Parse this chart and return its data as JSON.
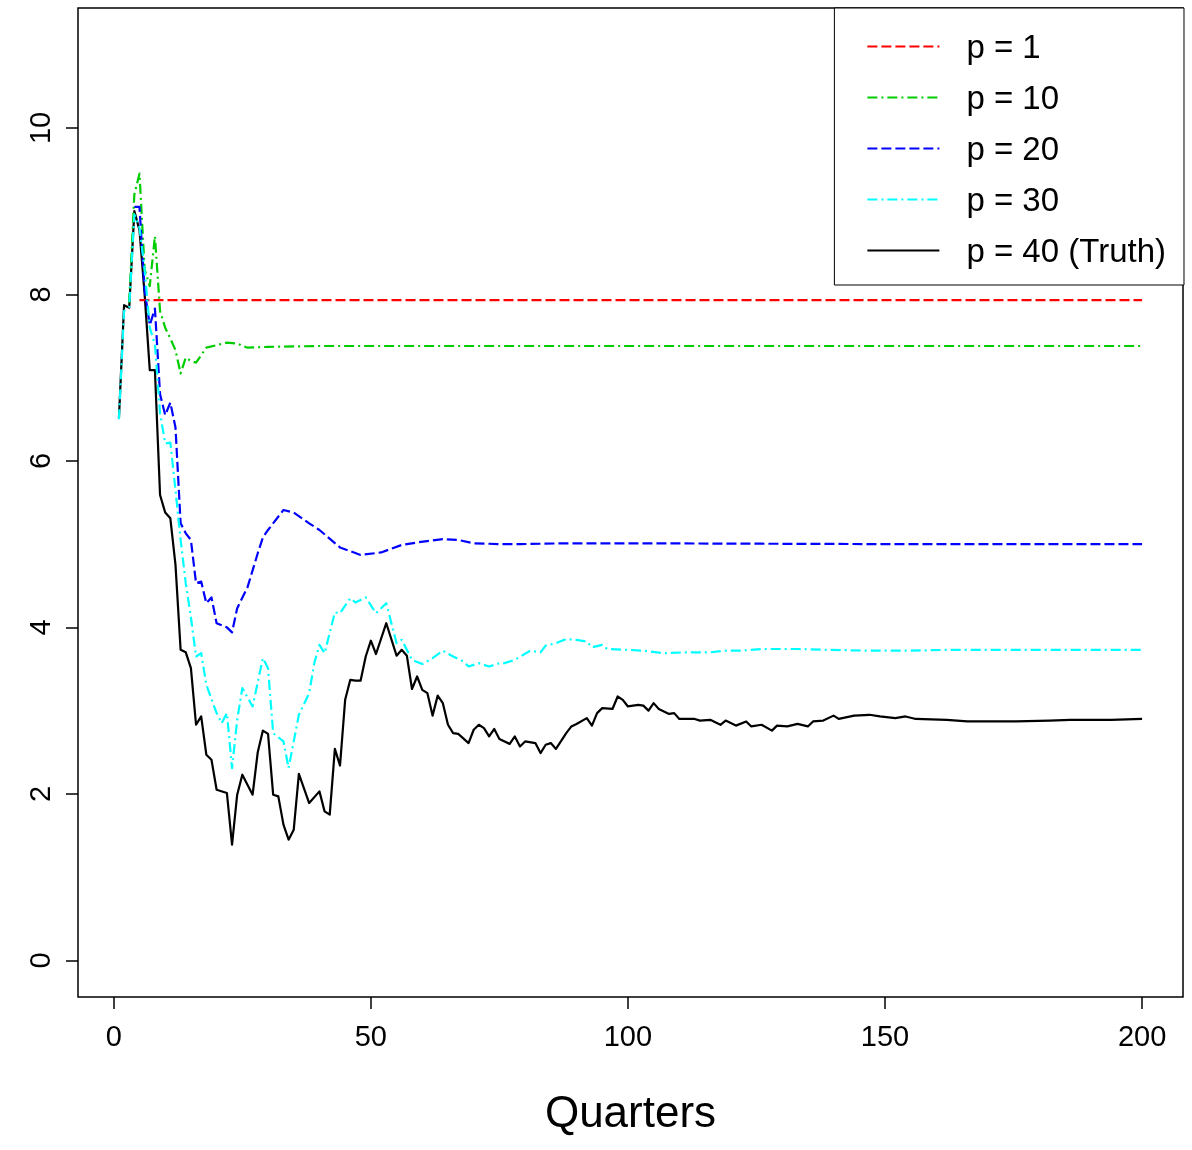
{
  "chart_data": {
    "type": "line",
    "xlabel": "Quarters",
    "xlim": [
      -6.96,
      207.96
    ],
    "xticks": [
      0,
      50,
      100,
      150,
      200
    ],
    "ylim": [
      -0.44,
      11.44
    ],
    "yticks": [
      0,
      2,
      4,
      6,
      8,
      10
    ],
    "grid": false,
    "legend": "top right",
    "marker": "none",
    "series": [
      {
        "name": "p = 1",
        "color": "#ff0000",
        "line_style": "dashed",
        "x": [
          5,
          200
        ],
        "values": [
          7.93,
          7.93
        ]
      },
      {
        "name": "p = 10",
        "color": "#00cd00",
        "line_style": "dotted",
        "x": [
          3,
          4,
          5,
          6,
          7,
          8,
          9,
          10,
          11,
          12,
          13,
          14,
          15,
          16,
          18,
          20,
          22,
          24,
          26,
          30,
          40,
          60,
          100,
          150,
          200
        ],
        "values": [
          7.9,
          9.2,
          9.45,
          8.3,
          8.1,
          8.7,
          7.8,
          7.6,
          7.47,
          7.33,
          7.05,
          7.24,
          7.2,
          7.18,
          7.36,
          7.39,
          7.42,
          7.41,
          7.36,
          7.37,
          7.38,
          7.38,
          7.38,
          7.38,
          7.38
        ]
      },
      {
        "name": "p = 20",
        "color": "#0000ff",
        "line_style": "dashed",
        "x": [
          4,
          5,
          6,
          7,
          8,
          9,
          10,
          11,
          12,
          13,
          14,
          15,
          16,
          17,
          18,
          19,
          20,
          22,
          23,
          24,
          26,
          28,
          29,
          30,
          33,
          35,
          38,
          40,
          44,
          48,
          52,
          56,
          59,
          64,
          67,
          70,
          75,
          79,
          88,
          93,
          101,
          150,
          200
        ],
        "values": [
          9.05,
          9.05,
          8.05,
          7.63,
          7.83,
          6.8,
          6.55,
          6.7,
          6.4,
          5.25,
          5.13,
          5.05,
          4.53,
          4.55,
          4.29,
          4.36,
          4.05,
          4.0,
          3.94,
          4.23,
          4.48,
          4.89,
          5.08,
          5.17,
          5.41,
          5.38,
          5.25,
          5.17,
          4.96,
          4.87,
          4.9,
          4.99,
          5.02,
          5.06,
          5.05,
          5.01,
          5.0,
          5.0,
          5.01,
          5.01,
          5.01,
          5.0,
          5.0
        ]
      },
      {
        "name": "p = 30",
        "color": "#00ffff",
        "line_style": "dotted",
        "x": [
          1,
          2,
          3,
          4,
          5,
          6,
          7,
          8,
          9,
          10,
          11,
          12,
          13,
          14,
          15,
          16,
          17,
          18,
          20,
          21,
          22,
          23,
          24,
          25,
          27,
          29,
          30,
          31,
          33,
          34,
          36,
          38,
          39,
          40,
          41,
          43,
          44,
          46,
          47,
          49,
          51,
          53,
          55,
          56,
          58,
          60,
          62,
          64,
          66,
          68,
          69,
          71,
          73,
          75,
          76,
          78,
          81,
          83,
          84,
          86,
          88,
          90,
          92,
          93,
          95,
          96,
          100,
          103,
          107,
          111,
          116,
          119,
          122,
          126,
          130,
          133,
          139,
          147,
          155,
          162,
          178,
          200
        ],
        "values": [
          6.5,
          7.8,
          7.85,
          8.96,
          8.8,
          8.3,
          7.6,
          7.4,
          6.57,
          6.21,
          6.22,
          5.65,
          5.05,
          4.53,
          4.12,
          3.65,
          3.69,
          3.31,
          2.97,
          2.85,
          2.97,
          2.31,
          2.89,
          3.27,
          3.05,
          3.63,
          3.51,
          2.73,
          2.63,
          2.31,
          2.95,
          3.21,
          3.57,
          3.79,
          3.69,
          4.18,
          4.17,
          4.35,
          4.3,
          4.36,
          4.17,
          4.29,
          3.81,
          3.85,
          3.61,
          3.56,
          3.63,
          3.72,
          3.65,
          3.59,
          3.53,
          3.57,
          3.53,
          3.57,
          3.57,
          3.61,
          3.72,
          3.7,
          3.78,
          3.81,
          3.86,
          3.85,
          3.83,
          3.76,
          3.79,
          3.74,
          3.73,
          3.72,
          3.69,
          3.7,
          3.7,
          3.72,
          3.72,
          3.74,
          3.74,
          3.74,
          3.73,
          3.72,
          3.72,
          3.73,
          3.73,
          3.73
        ]
      },
      {
        "name": "p = 40 (Truth)",
        "color": "#000000",
        "line_style": "solid",
        "x": [
          1,
          2,
          3,
          4,
          5,
          6,
          7,
          8,
          9,
          10,
          11,
          12,
          13,
          14,
          15,
          16,
          17,
          18,
          19,
          20,
          22,
          23,
          24,
          25,
          27,
          28,
          29,
          30,
          31,
          32,
          33,
          34,
          35,
          36,
          38,
          40,
          41,
          42,
          43,
          44,
          45,
          46,
          47,
          48,
          49,
          50,
          51,
          53,
          55,
          56,
          57,
          58,
          59,
          60,
          61,
          62,
          63,
          64,
          65,
          66,
          67,
          69,
          70,
          71,
          72,
          73,
          74,
          75,
          77,
          78,
          79,
          80,
          82,
          83,
          84,
          85,
          86,
          88,
          89,
          90,
          92,
          93,
          94,
          95,
          97,
          98,
          99,
          100,
          102,
          103,
          104,
          105,
          106,
          108,
          109,
          110,
          113,
          114,
          116,
          118,
          119,
          121,
          123,
          124,
          126,
          128,
          129,
          131,
          133,
          135,
          136,
          138,
          140,
          141,
          144,
          147,
          149,
          152,
          154,
          156,
          162,
          166,
          170,
          175,
          182,
          186,
          194,
          200
        ],
        "values": [
          6.51,
          7.87,
          7.84,
          9.0,
          8.77,
          8.0,
          7.09,
          7.09,
          5.59,
          5.38,
          5.31,
          4.75,
          3.73,
          3.7,
          3.51,
          2.83,
          2.93,
          2.47,
          2.41,
          2.05,
          2.01,
          1.39,
          1.99,
          2.23,
          1.99,
          2.5,
          2.76,
          2.72,
          1.99,
          1.97,
          1.63,
          1.45,
          1.57,
          2.24,
          1.89,
          2.03,
          1.79,
          1.75,
          2.54,
          2.34,
          3.13,
          3.37,
          3.36,
          3.36,
          3.65,
          3.84,
          3.68,
          4.05,
          3.66,
          3.73,
          3.66,
          3.26,
          3.41,
          3.25,
          3.21,
          2.94,
          3.18,
          3.09,
          2.83,
          2.73,
          2.72,
          2.61,
          2.77,
          2.83,
          2.79,
          2.69,
          2.78,
          2.66,
          2.6,
          2.69,
          2.57,
          2.63,
          2.61,
          2.49,
          2.59,
          2.61,
          2.54,
          2.73,
          2.81,
          2.84,
          2.91,
          2.82,
          2.97,
          3.03,
          3.02,
          3.17,
          3.13,
          3.05,
          3.07,
          3.06,
          3.0,
          3.09,
          3.02,
          2.96,
          2.97,
          2.9,
          2.9,
          2.88,
          2.89,
          2.83,
          2.88,
          2.82,
          2.87,
          2.81,
          2.83,
          2.76,
          2.82,
          2.81,
          2.84,
          2.81,
          2.87,
          2.88,
          2.94,
          2.9,
          2.94,
          2.95,
          2.93,
          2.91,
          2.93,
          2.9,
          2.89,
          2.87,
          2.87,
          2.87,
          2.88,
          2.89,
          2.89,
          2.9
        ]
      }
    ]
  }
}
